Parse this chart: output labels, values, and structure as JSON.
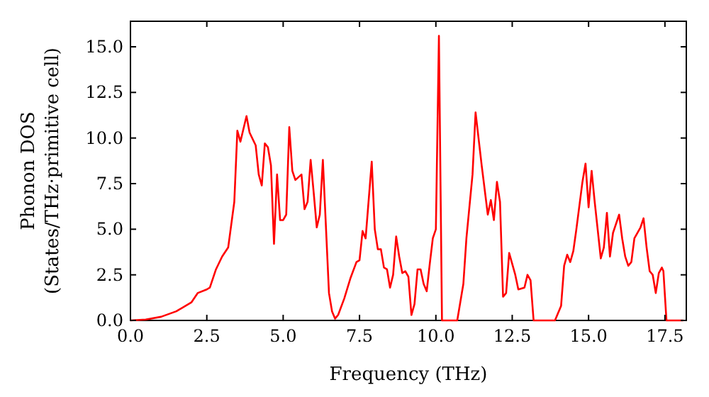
{
  "chart_data": {
    "type": "line",
    "xlabel": "Frequency (THz)",
    "ylabel": "Phonon DOS\n(States/THz·primitive cell)",
    "xlim": [
      0,
      18.2
    ],
    "ylim": [
      0,
      16.4
    ],
    "xticks": [
      {
        "value": 0,
        "label": "0.0"
      },
      {
        "value": 2.5,
        "label": "2.5"
      },
      {
        "value": 5,
        "label": "5.0"
      },
      {
        "value": 7.5,
        "label": "7.5"
      },
      {
        "value": 10,
        "label": "10.0"
      },
      {
        "value": 12.5,
        "label": "12.5"
      },
      {
        "value": 15,
        "label": "15.0"
      },
      {
        "value": 17.5,
        "label": "17.5"
      }
    ],
    "yticks": [
      {
        "value": 0,
        "label": "0.0"
      },
      {
        "value": 2.5,
        "label": "2.5"
      },
      {
        "value": 5,
        "label": "5.0"
      },
      {
        "value": 7.5,
        "label": "7.5"
      },
      {
        "value": 10,
        "label": "10.0"
      },
      {
        "value": 12.5,
        "label": "12.5"
      },
      {
        "value": 15,
        "label": "15.0"
      }
    ],
    "marker": "none",
    "line_style": "solid",
    "series": [
      {
        "color": "#ff0000",
        "x": [
          0,
          0.5,
          1,
          1.5,
          2,
          2.2,
          2.5,
          2.6,
          2.8,
          3.0,
          3.2,
          3.4,
          3.5,
          3.6,
          3.7,
          3.8,
          3.9,
          4.1,
          4.2,
          4.3,
          4.4,
          4.5,
          4.6,
          4.7,
          4.8,
          4.9,
          5.0,
          5.1,
          5.2,
          5.3,
          5.4,
          5.6,
          5.7,
          5.8,
          5.9,
          6.0,
          6.1,
          6.2,
          6.3,
          6.5,
          6.6,
          6.7,
          6.8,
          7.0,
          7.2,
          7.4,
          7.5,
          7.6,
          7.7,
          7.9,
          8.0,
          8.1,
          8.2,
          8.3,
          8.4,
          8.5,
          8.6,
          8.7,
          8.8,
          8.9,
          9.0,
          9.1,
          9.2,
          9.3,
          9.4,
          9.5,
          9.6,
          9.7,
          9.8,
          9.9,
          10.0,
          10.1,
          10.2,
          10.7,
          10.9,
          11.0,
          11.2,
          11.3,
          11.5,
          11.7,
          11.8,
          11.9,
          12.0,
          12.1,
          12.2,
          12.3,
          12.4,
          12.6,
          12.7,
          12.9,
          13.0,
          13.1,
          13.2,
          13.9,
          14.1,
          14.2,
          14.3,
          14.4,
          14.5,
          14.6,
          14.8,
          14.9,
          15.0,
          15.1,
          15.2,
          15.4,
          15.5,
          15.6,
          15.7,
          15.8,
          16.0,
          16.1,
          16.2,
          16.3,
          16.4,
          16.5,
          16.7,
          16.8,
          16.9,
          17.0,
          17.1,
          17.2,
          17.3,
          17.4,
          17.45,
          17.55,
          18.1
        ],
        "values": [
          0,
          0.05,
          0.2,
          0.5,
          1.0,
          1.5,
          1.7,
          1.8,
          2.8,
          3.5,
          4.0,
          6.5,
          10.4,
          9.8,
          10.5,
          11.2,
          10.3,
          9.6,
          8.0,
          7.4,
          9.7,
          9.5,
          8.5,
          4.2,
          8.0,
          5.5,
          5.5,
          5.8,
          10.6,
          8.2,
          7.7,
          8.0,
          6.1,
          6.5,
          8.8,
          7.0,
          5.1,
          5.8,
          8.8,
          1.5,
          0.5,
          0.1,
          0.3,
          1.2,
          2.3,
          3.2,
          3.3,
          4.9,
          4.5,
          8.7,
          5.0,
          3.9,
          3.9,
          2.9,
          2.8,
          1.8,
          2.5,
          4.6,
          3.5,
          2.6,
          2.7,
          2.4,
          0.3,
          0.9,
          2.8,
          2.8,
          2.0,
          1.6,
          3.1,
          4.5,
          5.0,
          15.6,
          0,
          0,
          2.0,
          4.5,
          8.0,
          11.4,
          8.5,
          5.8,
          6.6,
          5.5,
          7.6,
          6.5,
          1.3,
          1.5,
          3.7,
          2.5,
          1.7,
          1.8,
          2.5,
          2.2,
          0,
          0,
          0.8,
          3.0,
          3.6,
          3.2,
          3.8,
          5.0,
          7.6,
          8.6,
          6.2,
          8.2,
          6.5,
          3.4,
          4.0,
          5.9,
          3.5,
          4.8,
          5.8,
          4.5,
          3.5,
          3.0,
          3.2,
          4.5,
          5.1,
          5.6,
          4.0,
          2.7,
          2.5,
          1.5,
          2.6,
          2.9,
          2.7,
          0,
          0
        ]
      }
    ]
  }
}
